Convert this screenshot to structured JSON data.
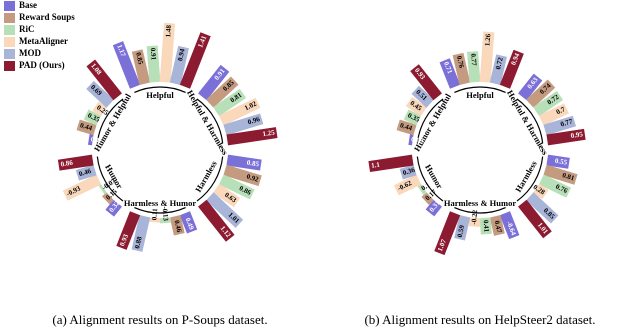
{
  "chart_data": [
    {
      "type": "radial_bar",
      "caption": "(a) Alignment results on P-Soups dataset.",
      "categories": [
        "Helpful",
        "Helpful & Harmless",
        "Harmless",
        "Harmless & Humor",
        "Humor",
        "Humor & Helpful"
      ],
      "legend": "upper left",
      "series": [
        {
          "name": "Base",
          "color": "#7b6fd8",
          "values": [
            1.17,
            0.91,
            0.85,
            0.49,
            0.32,
            0.1
          ]
        },
        {
          "name": "Reward Soups",
          "color": "#c49b80",
          "values": [
            0.85,
            0.85,
            0.92,
            0.46,
            0.15,
            0.44
          ]
        },
        {
          "name": "RiC",
          "color": "#b8e0b8",
          "values": [
            0.91,
            0.81,
            0.86,
            -0.13,
            -0.07,
            0.35
          ]
        },
        {
          "name": "MetaAligner",
          "color": "#f9d8bb",
          "values": [
            1.48,
            1.02,
            0.63,
            0.11,
            -0.93,
            0.25
          ]
        },
        {
          "name": "MOD",
          "color": "#a8b4d8",
          "values": [
            0.94,
            0.96,
            1.01,
            0.88,
            0.46,
            0.69
          ]
        },
        {
          "name": "PAD (Ours)",
          "color": "#8c1a30",
          "values": [
            1.41,
            1.25,
            1.12,
            0.93,
            0.86,
            1.08
          ]
        }
      ]
    },
    {
      "type": "radial_bar",
      "caption": "(b) Alignment results on HelpSteer2 dataset.",
      "categories": [
        "Helpful",
        "Helpful & Harmless",
        "Harmless",
        "Harmless & Humor",
        "Humor",
        "Humor & Helpful"
      ],
      "series": [
        {
          "color": "#7b6fd8",
          "values": [
            0.71,
            0.63,
            0.55,
            -0.64,
            0.31,
            0.09
          ]
        },
        {
          "color": "#c49b80",
          "values": [
            0.76,
            0.74,
            0.81,
            0.47,
            0.17,
            0.44
          ]
        },
        {
          "color": "#b8e0b8",
          "values": [
            0.77,
            0.72,
            0.76,
            0.41,
            0.1,
            0.35
          ]
        },
        {
          "color": "#f9d8bb",
          "values": [
            1.26,
            0.7,
            0.28,
            -0.22,
            -0.62,
            0.45
          ]
        },
        {
          "color": "#a8b4d8",
          "values": [
            0.72,
            0.77,
            0.85,
            0.59,
            0.36,
            0.51
          ]
        },
        {
          "color": "#8c1a30",
          "values": [
            0.94,
            0.95,
            1.01,
            1.07,
            1.1,
            0.93
          ]
        }
      ]
    }
  ]
}
